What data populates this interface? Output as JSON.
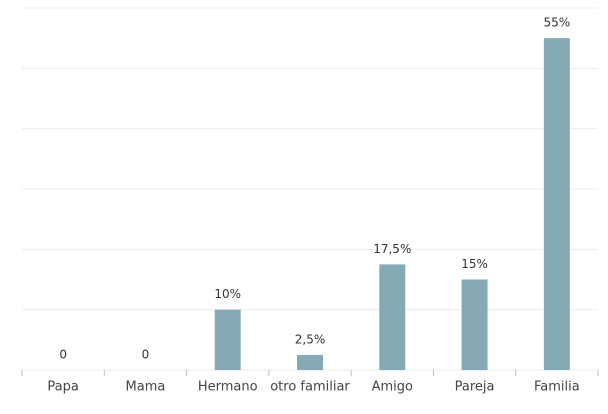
{
  "chart_data": {
    "type": "bar",
    "categories": [
      "Papa",
      "Mama",
      "Hermano",
      "otro familiar",
      "Amigo",
      "Pareja",
      "Familia"
    ],
    "values": [
      0,
      0,
      10,
      2.5,
      17.5,
      15,
      55
    ],
    "value_labels": [
      "0",
      "0",
      "10%",
      "2,5%",
      "17,5%",
      "15%",
      "55%"
    ],
    "color": "#84aab5",
    "ylim": [
      0,
      60
    ],
    "yticks": [
      0,
      10,
      20,
      30,
      40,
      50,
      60
    ],
    "grid": true
  }
}
